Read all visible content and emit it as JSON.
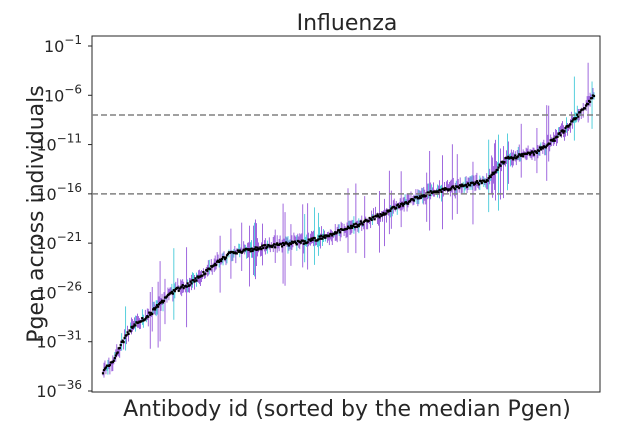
{
  "chart_data": {
    "type": "scatter",
    "title": "Influenza",
    "xlabel": "Antibody id (sorted by the median Pgen)",
    "ylabel": "Pgen across individuals",
    "yscale": "log",
    "ylim_exponent": [
      -36,
      0
    ],
    "y_ticks": [
      {
        "base": "10",
        "exp": "−1",
        "value": -1
      },
      {
        "base": "10",
        "exp": "−6",
        "value": -6
      },
      {
        "base": "10",
        "exp": "−11",
        "value": -11
      },
      {
        "base": "10",
        "exp": "−16",
        "value": -16
      },
      {
        "base": "10",
        "exp": "−21",
        "value": -21
      },
      {
        "base": "10",
        "exp": "−26",
        "value": -26
      },
      {
        "base": "10",
        "exp": "−31",
        "value": -31
      },
      {
        "base": "10",
        "exp": "−36",
        "value": -36
      }
    ],
    "x_ticks": [],
    "reference_lines_log10": [
      -8,
      -16
    ],
    "n_antibodies": 500,
    "median_log10_pgen_profile": [
      [
        0.0,
        -34
      ],
      [
        0.02,
        -33
      ],
      [
        0.04,
        -31
      ],
      [
        0.06,
        -29.5
      ],
      [
        0.1,
        -28
      ],
      [
        0.14,
        -26
      ],
      [
        0.18,
        -25
      ],
      [
        0.22,
        -23.5
      ],
      [
        0.26,
        -22
      ],
      [
        0.34,
        -21.3
      ],
      [
        0.42,
        -20.8
      ],
      [
        0.5,
        -19.5
      ],
      [
        0.55,
        -18.5
      ],
      [
        0.6,
        -17.3
      ],
      [
        0.66,
        -16
      ],
      [
        0.72,
        -15.3
      ],
      [
        0.78,
        -14.7
      ],
      [
        0.82,
        -12.5
      ],
      [
        0.88,
        -11.8
      ],
      [
        0.92,
        -10.5
      ],
      [
        0.96,
        -8.5
      ],
      [
        1.0,
        -6
      ]
    ],
    "colors": {
      "median": "#000000",
      "spread_1": "#7b2fd1",
      "spread_2": "#17becf",
      "reference_line": "#808080"
    },
    "grid": false,
    "legend": "none"
  }
}
